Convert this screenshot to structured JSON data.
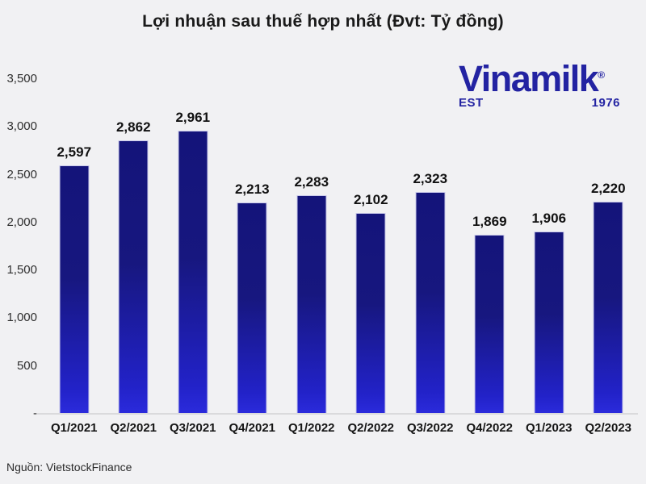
{
  "source": "Nguồn: VietstockFinance",
  "logo": {
    "brand": "Vinamilk",
    "reg": "®",
    "est": "EST",
    "year": "1976",
    "color": "#2323a2"
  },
  "colors": {
    "background": "#f1f1f3",
    "bar_top": "#14147a",
    "bar_bottom": "#2b2bdc",
    "baseline": "#dadadc",
    "value_label": "#111111"
  },
  "chart_data": {
    "type": "bar",
    "title": "Lợi nhuận sau thuế hợp nhất (Đvt: Tỷ đồng)",
    "categories": [
      "Q1/2021",
      "Q2/2021",
      "Q3/2021",
      "Q4/2021",
      "Q1/2022",
      "Q2/2022",
      "Q3/2022",
      "Q4/2022",
      "Q1/2023",
      "Q2/2023"
    ],
    "values": [
      2597,
      2862,
      2961,
      2213,
      2283,
      2102,
      2323,
      1869,
      1906,
      2220
    ],
    "value_labels": [
      "2,597",
      "2,862",
      "2,961",
      "2,213",
      "2,283",
      "2,102",
      "2,323",
      "1,869",
      "1,906",
      "2,220"
    ],
    "xlabel": "",
    "ylabel": "",
    "ylim": [
      0,
      3500
    ],
    "yticks": [
      0,
      500,
      1000,
      1500,
      2000,
      2500,
      3000,
      3500
    ],
    "ytick_labels": [
      "-",
      "500",
      "1,000",
      "1,500",
      "2,000",
      "2,500",
      "3,000",
      "3,500"
    ],
    "grid": false,
    "legend": false
  }
}
